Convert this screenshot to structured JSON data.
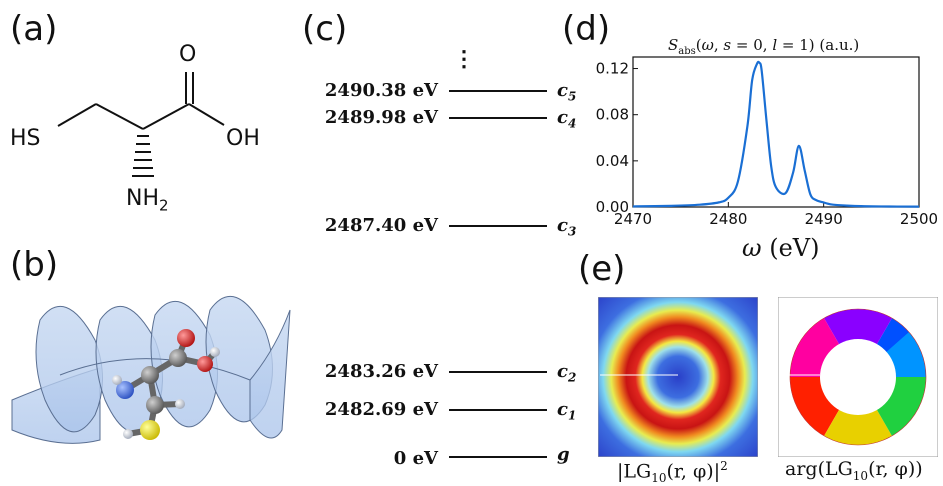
{
  "panels": {
    "a": "(a)",
    "b": "(b)",
    "c": "(c)",
    "d": "(d)",
    "e": "(e)"
  },
  "molecule": {
    "sh": "HS",
    "o": "O",
    "oh": "OH",
    "nh": "NH",
    "nh_sub": "2"
  },
  "energy_levels": {
    "ellipsis": "⋮",
    "levels": [
      {
        "energy": "2490.38 eV",
        "state": "c",
        "sub": "5"
      },
      {
        "energy": "2489.98 eV",
        "state": "c",
        "sub": "4"
      },
      {
        "energy": "2487.40 eV",
        "state": "c",
        "sub": "3"
      },
      {
        "energy": "2483.26 eV",
        "state": "c",
        "sub": "2"
      },
      {
        "energy": "2482.69 eV",
        "state": "c",
        "sub": "1"
      },
      {
        "energy": "0 eV",
        "state": "g",
        "sub": ""
      }
    ]
  },
  "chart_data": {
    "type": "line",
    "title": "S_abs(ω, s = 0, l = 1) (a.u.)",
    "xlabel": "ω (eV)",
    "ylabel": "",
    "xlim": [
      2470,
      2500
    ],
    "ylim": [
      0,
      0.13
    ],
    "xticks": [
      "2470",
      "2480",
      "2490",
      "2500"
    ],
    "yticks": [
      "0.00",
      "0.04",
      "0.08",
      "0.12"
    ],
    "series": [
      {
        "color": "#1a6fd4",
        "x": [
          2470,
          2474,
          2477,
          2479,
          2480,
          2481,
          2482,
          2482.5,
          2483,
          2483.26,
          2483.5,
          2484,
          2484.5,
          2485,
          2486,
          2486.8,
          2487.4,
          2488,
          2488.6,
          2489.2,
          2489.98,
          2490.38,
          2491,
          2493,
          2496,
          2500
        ],
        "y": [
          0.0005,
          0.001,
          0.002,
          0.004,
          0.008,
          0.022,
          0.07,
          0.11,
          0.124,
          0.125,
          0.118,
          0.075,
          0.035,
          0.017,
          0.012,
          0.03,
          0.053,
          0.032,
          0.011,
          0.006,
          0.004,
          0.003,
          0.002,
          0.001,
          0.0005,
          0.0003
        ]
      }
    ]
  },
  "captions": {
    "intensity_main": "|LG",
    "intensity_sub": "10",
    "intensity_rest": "(r, φ)|",
    "intensity_sup": "2",
    "phase_main": "arg(LG",
    "phase_sub": "10",
    "phase_rest": "(r, φ))"
  }
}
